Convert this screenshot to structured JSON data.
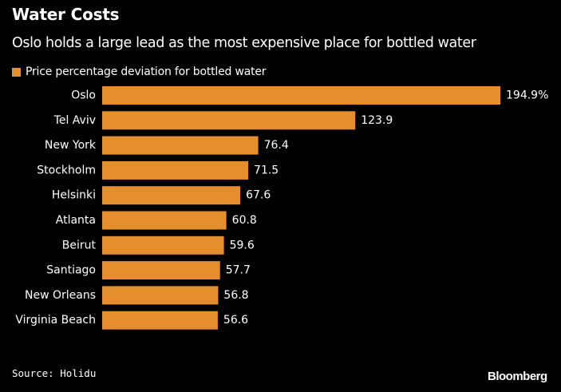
{
  "header": {
    "title": "Water Costs",
    "subtitle": "Oslo holds a large lead as the most expensive place for bottled water"
  },
  "footer": {
    "source": "Source: Holidu",
    "brand": "Bloomberg"
  },
  "colors": {
    "background": "#000000",
    "bar": "#E48E2D",
    "text": "#FFFFFF"
  },
  "chart_data": {
    "type": "bar",
    "orientation": "horizontal",
    "title": "Water Costs",
    "subtitle": "Oslo holds a large lead as the most expensive place for bottled water",
    "categories": [
      "Oslo",
      "Tel Aviv",
      "New York",
      "Stockholm",
      "Helsinki",
      "Atlanta",
      "Beirut",
      "Santiago",
      "New Orleans",
      "Virginia Beach"
    ],
    "series": [
      {
        "name": "Price percentage deviation for bottled water",
        "values": [
          194.9,
          123.9,
          76.4,
          71.5,
          67.6,
          60.8,
          59.6,
          57.7,
          56.8,
          56.6
        ]
      }
    ],
    "value_labels": [
      "194.9%",
      "123.9",
      "76.4",
      "71.5",
      "67.6",
      "60.8",
      "59.6",
      "57.7",
      "56.8",
      "56.6"
    ],
    "xlim": [
      0,
      194.9
    ],
    "xlabel": "",
    "ylabel": "",
    "grid": false,
    "legend_position": "top-left"
  }
}
